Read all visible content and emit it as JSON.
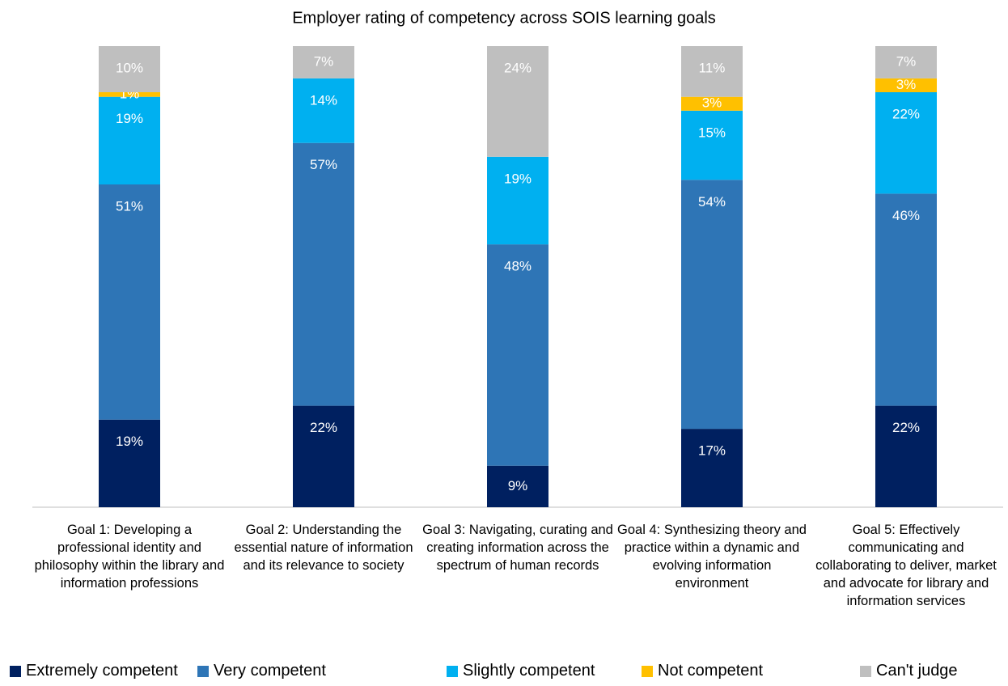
{
  "chart_data": {
    "type": "stacked_bar",
    "title": "Employer rating of competency across SOIS learning goals",
    "categories": [
      "Goal 1: Developing a professional identity and philosophy within the library and information professions",
      "Goal 2: Understanding the essential nature of information and its relevance to society",
      "Goal 3: Navigating, curating and creating information across the spectrum of human records",
      "Goal 4: Synthesizing theory and practice within a dynamic and evolving information environment",
      "Goal 5: Effectively communicating and collaborating to deliver, market and advocate for library and information services"
    ],
    "series": [
      {
        "name": "Extremely competent",
        "color": "#002060",
        "values": [
          19,
          22,
          9,
          17,
          22
        ],
        "value_labels": [
          "19%",
          "22%",
          "9%",
          "17%",
          "22%"
        ]
      },
      {
        "name": "Very competent",
        "color": "#2e75b6",
        "values": [
          51,
          57,
          48,
          54,
          46
        ],
        "value_labels": [
          "51%",
          "57%",
          "48%",
          "54%",
          "46%"
        ]
      },
      {
        "name": "Slightly competent",
        "color": "#00b0f0",
        "values": [
          19,
          14,
          19,
          15,
          22
        ],
        "value_labels": [
          "19%",
          "14%",
          "19%",
          "15%",
          "22%"
        ]
      },
      {
        "name": "Not competent",
        "color": "#ffc000",
        "values": [
          1,
          null,
          null,
          3,
          3
        ],
        "value_labels": [
          "1%",
          null,
          null,
          "3%",
          "3%"
        ]
      },
      {
        "name": "Can't judge",
        "color": "#bfbfbf",
        "values": [
          10,
          7,
          24,
          11,
          7
        ],
        "value_labels": [
          "10%",
          "7%",
          "24%",
          "11%",
          "7%"
        ]
      }
    ],
    "ylim": [
      0,
      100
    ],
    "legend": "bottom"
  }
}
